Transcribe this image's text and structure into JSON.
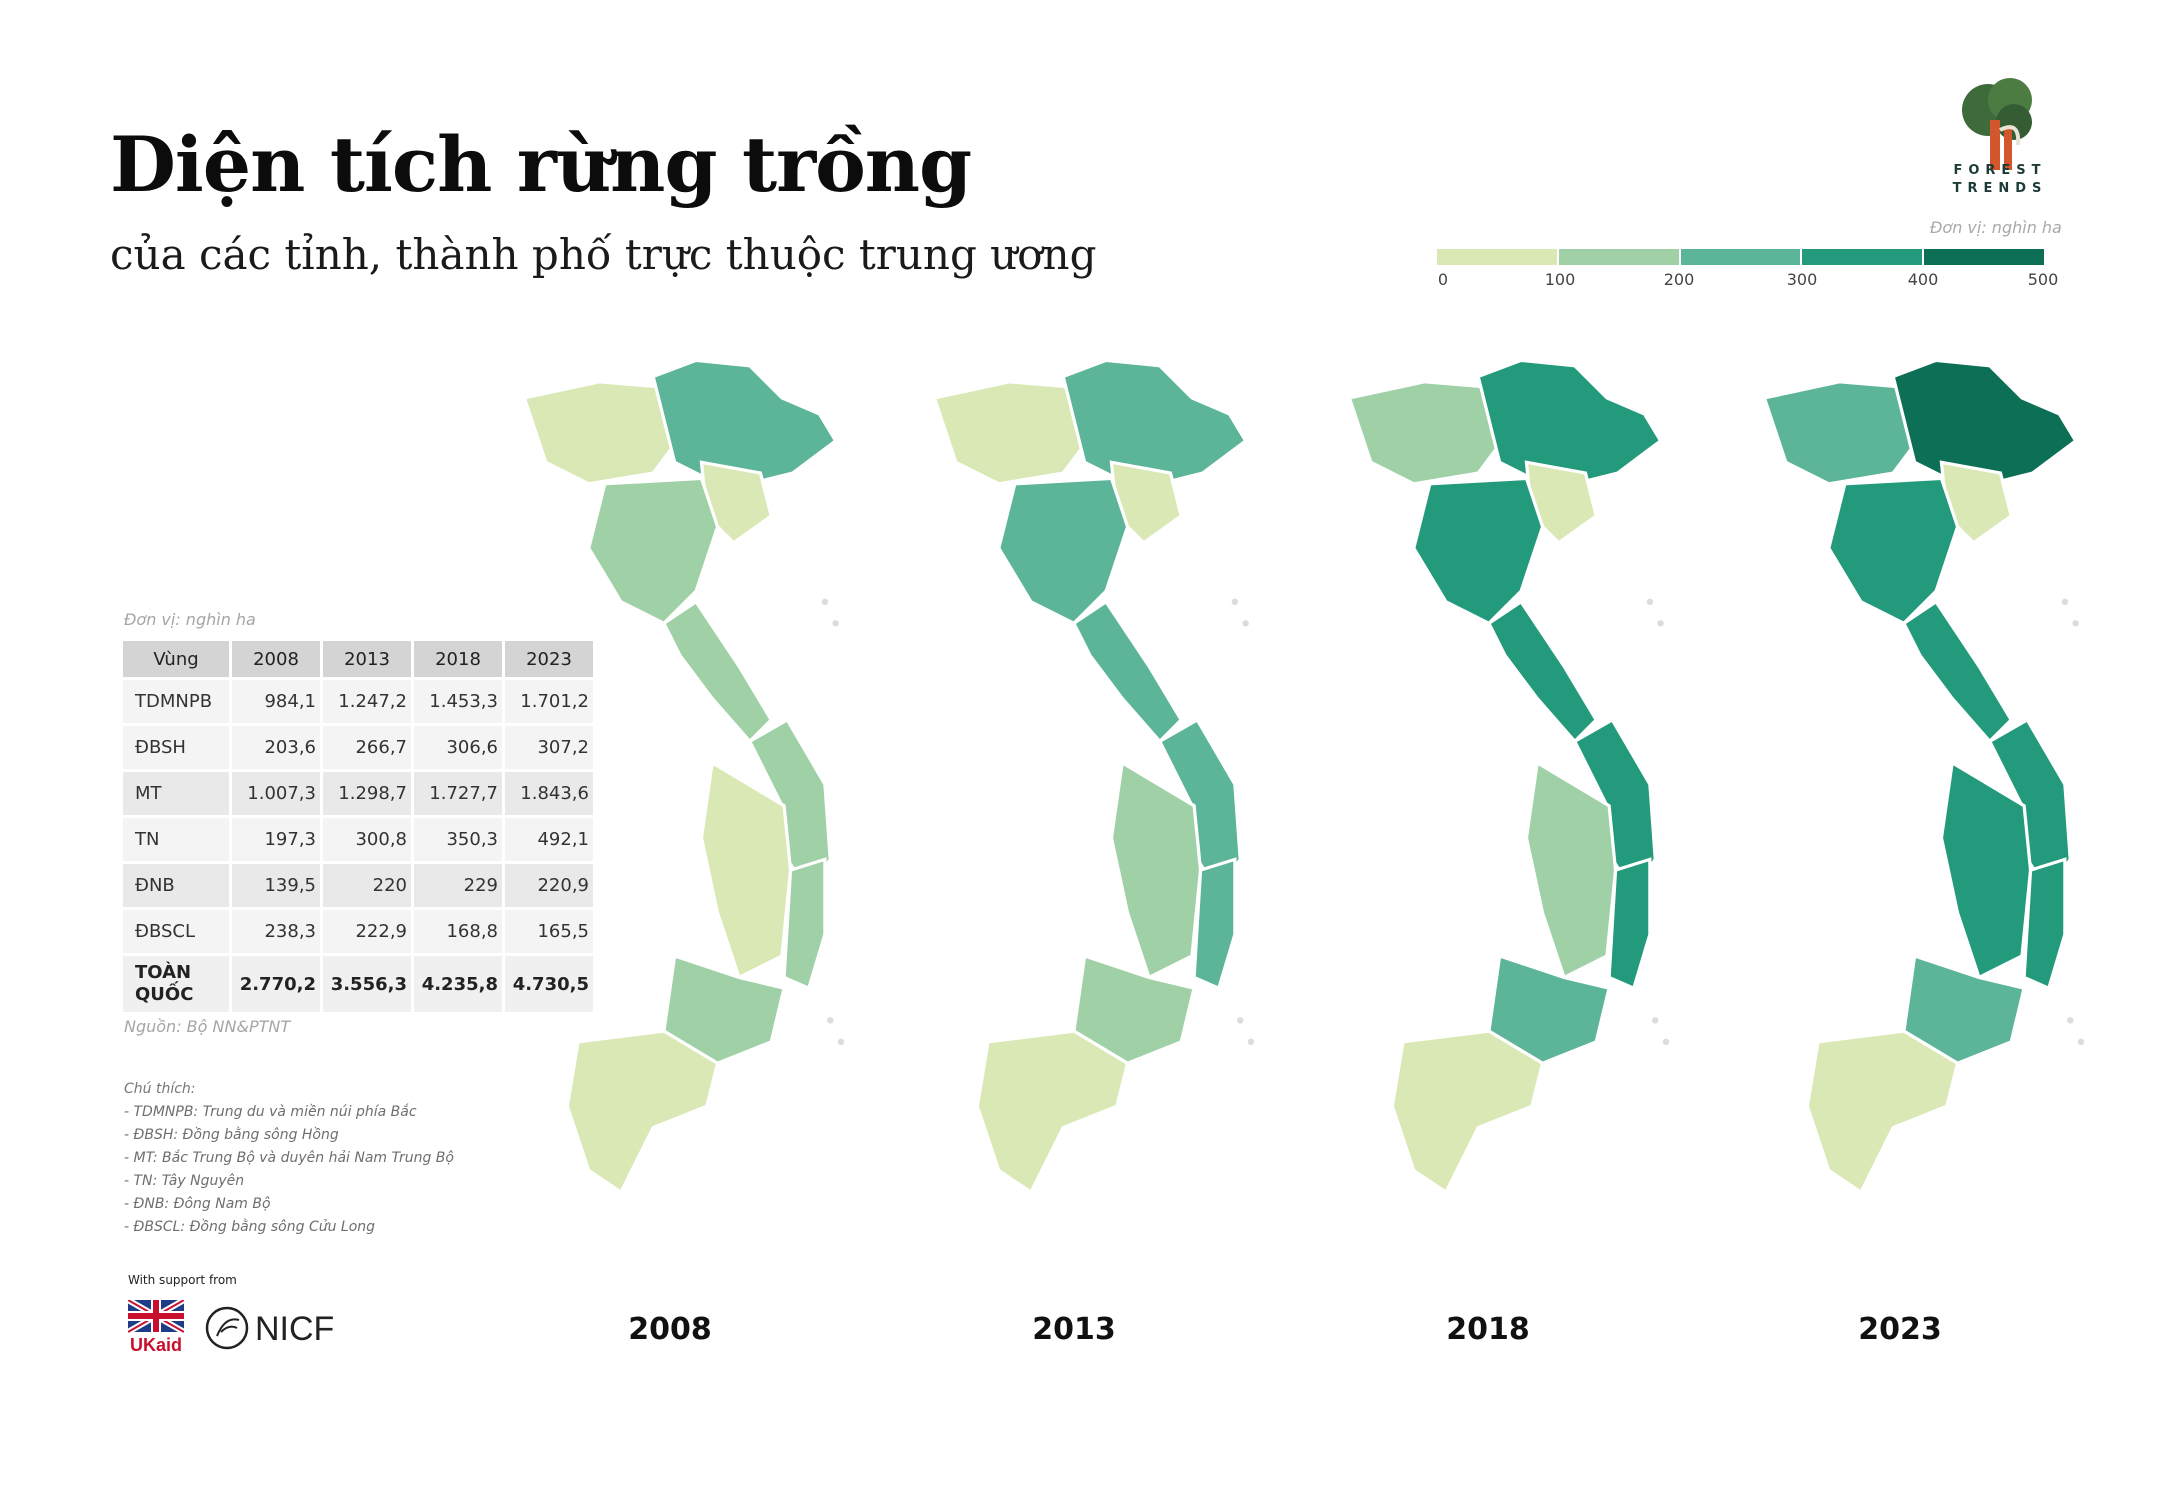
{
  "title": "Diện tích rừng trồng",
  "subtitle": "của các tỉnh, thành phố trực thuộc trung ương",
  "logo": {
    "text_line1": "FOREST",
    "text_line2": "TRENDS"
  },
  "legend": {
    "unit": "Đơn vị: nghìn ha",
    "ticks": [
      "0",
      "100",
      "200",
      "300",
      "400",
      "500"
    ],
    "colors": [
      "#d9e8b4",
      "#9fd0a6",
      "#5cb598",
      "#249a7c",
      "#0d6f55"
    ]
  },
  "table": {
    "unit": "Đơn vị: nghìn ha",
    "headers": [
      "Vùng",
      "2008",
      "2013",
      "2018",
      "2023"
    ],
    "rows": [
      {
        "region": "TDMNPB",
        "values": [
          "984,1",
          "1.247,2",
          "1.453,3",
          "1.701,2"
        ]
      },
      {
        "region": "ĐBSH",
        "values": [
          "203,6",
          "266,7",
          "306,6",
          "307,2"
        ]
      },
      {
        "region": "MT",
        "values": [
          "1.007,3",
          "1.298,7",
          "1.727,7",
          "1.843,6"
        ]
      },
      {
        "region": "TN",
        "values": [
          "197,3",
          "300,8",
          "350,3",
          "492,1"
        ]
      },
      {
        "region": "ĐNB",
        "values": [
          "139,5",
          "220",
          "229",
          "220,9"
        ]
      },
      {
        "region": "ĐBSCL",
        "values": [
          "238,3",
          "222,9",
          "168,8",
          "165,5"
        ]
      }
    ],
    "total": {
      "region_line1": "TOÀN",
      "region_line2": "QUỐC",
      "values": [
        "2.770,2",
        "3.556,3",
        "4.235,8",
        "4.730,5"
      ]
    },
    "source": "Nguồn: Bộ NN&PTNT"
  },
  "notes": {
    "heading": "Chú thích:",
    "items": [
      "-  TDMNPB: Trung du và miền núi phía Bắc",
      "-  ĐBSH: Đồng bằng sông Hồng",
      "-  MT: Bắc Trung Bộ và duyên hải Nam Trung Bộ",
      "-  TN: Tây Nguyên",
      "-  ĐNB: Đông Nam Bộ",
      "-  ĐBSCL: Đồng bằng sông Cửu Long"
    ]
  },
  "support": {
    "label": "With support from",
    "ukaid": "UKaid",
    "nicfi": "NICFI"
  },
  "maps": [
    {
      "year": "2008",
      "north": 2,
      "delta": 0,
      "central": 1,
      "highland": 0,
      "southeast": 1,
      "mekong": 0
    },
    {
      "year": "2013",
      "north": 2,
      "delta": 0,
      "central": 2,
      "highland": 1,
      "southeast": 1,
      "mekong": 0
    },
    {
      "year": "2018",
      "north": 3,
      "delta": 0,
      "central": 3,
      "highland": 1,
      "southeast": 2,
      "mekong": 0
    },
    {
      "year": "2023",
      "north": 4,
      "delta": 0,
      "central": 3,
      "highland": 3,
      "southeast": 2,
      "mekong": 0
    }
  ]
}
